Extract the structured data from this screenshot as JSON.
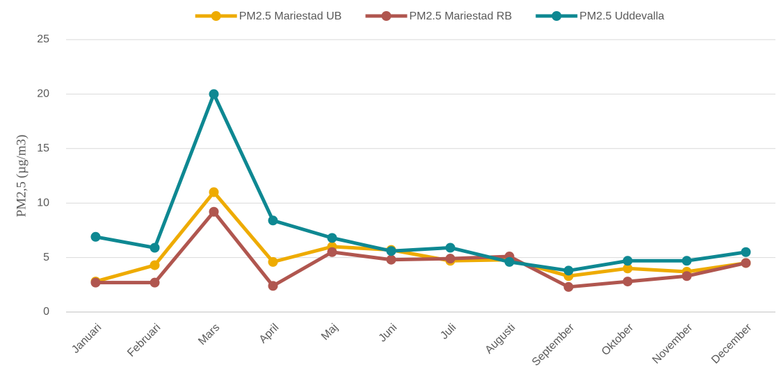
{
  "chart_data": {
    "type": "line",
    "y_label": "PM2,5 (µg/m3)",
    "categories": [
      "Januari",
      "Februari",
      "Mars",
      "April",
      "Maj",
      "Juni",
      "Juli",
      "Augusti",
      "September",
      "Oktober",
      "November",
      "December"
    ],
    "series": [
      {
        "name": "PM2.5 Mariestad UB",
        "color": "#eeab00",
        "values": [
          2.8,
          4.3,
          11,
          4.6,
          6.0,
          5.7,
          4.7,
          4.8,
          3.3,
          4.0,
          3.7,
          4.5
        ]
      },
      {
        "name": "PM2.5 Mariestad RB",
        "color": "#b0564f",
        "values": [
          2.7,
          2.7,
          9.2,
          2.4,
          5.5,
          4.8,
          4.9,
          5.1,
          2.3,
          2.8,
          3.3,
          4.5
        ]
      },
      {
        "name": "PM2.5 Uddevalla",
        "color": "#0e8892",
        "values": [
          6.9,
          5.9,
          20,
          8.4,
          6.8,
          5.6,
          5.9,
          4.6,
          3.8,
          4.7,
          4.7,
          5.5
        ]
      }
    ],
    "ylim": [
      0,
      25
    ],
    "yticks": [
      0,
      5,
      10,
      15,
      20,
      25
    ],
    "grid": true,
    "legend": "top"
  }
}
